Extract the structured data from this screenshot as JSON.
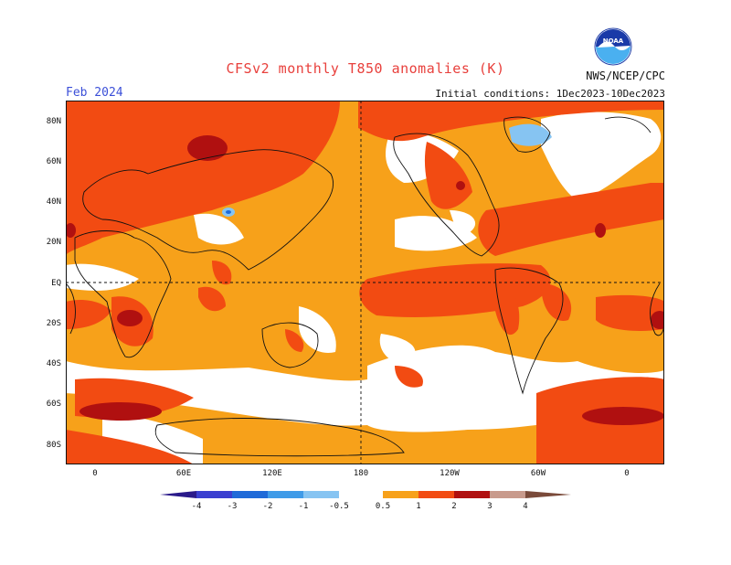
{
  "header": {
    "title": "CFSv2 monthly T850 anomalies (K)",
    "org": "NWS/NCEP/CPC",
    "logo_text": "NOAA",
    "month": "Feb 2024",
    "initial_conditions": "Initial conditions: 1Dec2023-10Dec2023"
  },
  "map": {
    "lat_labels": [
      "80N",
      "60N",
      "40N",
      "20N",
      "EQ",
      "20S",
      "40S",
      "60S",
      "80S"
    ],
    "lon_labels": [
      "0",
      "60E",
      "120E",
      "180",
      "120W",
      "60W",
      "0"
    ]
  },
  "colorbar": {
    "labels": [
      "-4",
      "-3",
      "-2",
      "-1",
      "-0.5",
      "0.5",
      "1",
      "2",
      "3",
      "4"
    ],
    "colors": {
      "below_-4": "#2a1a8a",
      "-4_-3": "#3a3fd0",
      "-3_-2": "#1f6ad8",
      "-2_-1": "#3f9be8",
      "-1_-0.5": "#86c4f2",
      "-0.5_0.5": "#ffffff",
      "0.5_1": "#f7a11a",
      "1_2": "#f24b12",
      "2_3": "#b01010",
      "3_4": "#c89a8c",
      "above_4": "#7a4a3a"
    }
  },
  "colors": {
    "title": "#e8403c",
    "month": "#3b4fd8",
    "anomaly_0.5_1": "#f7a11a",
    "anomaly_1_2": "#f24b12",
    "anomaly_2_3": "#b01010"
  }
}
